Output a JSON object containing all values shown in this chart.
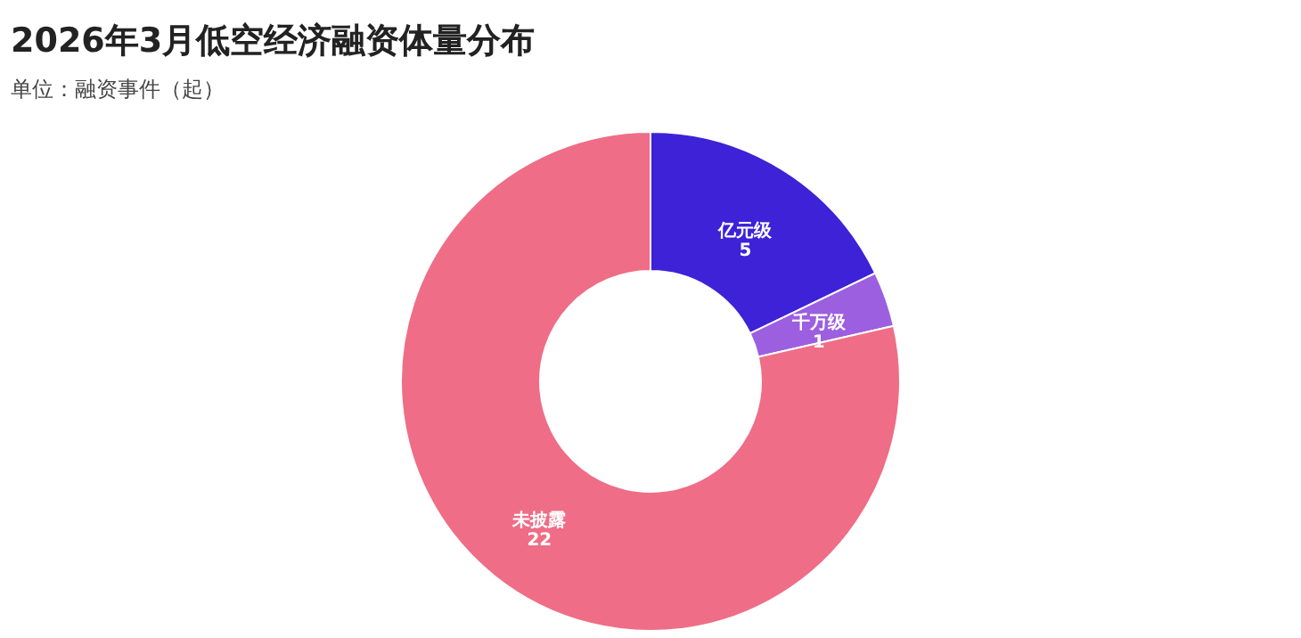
{
  "chart_data": {
    "type": "donut",
    "title": "2026年3月低空经济融资体量分布",
    "subtitle": "单位：融资事件（起）",
    "categories": [
      "亿元级",
      "千万级",
      "未披露"
    ],
    "values": [
      5,
      1,
      22
    ],
    "colors": [
      "#3d22d8",
      "#9c5fe0",
      "#ef6d86"
    ],
    "data_labels": true,
    "legend": false
  }
}
